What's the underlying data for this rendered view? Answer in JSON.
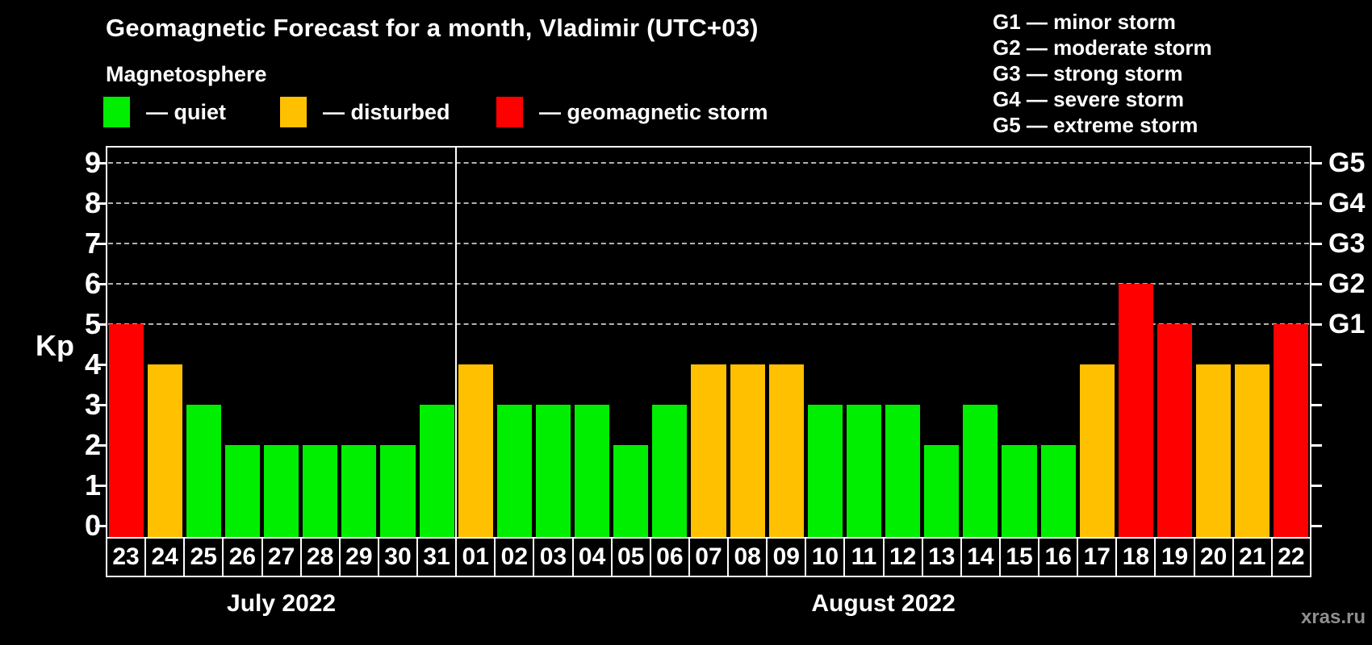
{
  "title": "Geomagnetic Forecast for a month, Vladimir (UTC+03)",
  "subtitle": "Magnetosphere",
  "legend": {
    "items": [
      {
        "key": "quiet",
        "label": "— quiet",
        "color": "#00ee00"
      },
      {
        "key": "disturbed",
        "label": "— disturbed",
        "color": "#ffc000"
      },
      {
        "key": "storm",
        "label": "— geomagnetic storm",
        "color": "#ff0000"
      }
    ]
  },
  "storm_scale": [
    "G1 — minor storm",
    "G2 — moderate storm",
    "G3 — strong storm",
    "G4 — severe storm",
    "G5 — extreme storm"
  ],
  "watermark": "xras.ru",
  "chart_data": {
    "type": "bar",
    "title": "Geomagnetic Forecast for a month, Vladimir (UTC+03)",
    "xlabel": "",
    "ylabel": "Kp",
    "ylim": [
      -0.3,
      9.4
    ],
    "y_ticks": [
      0,
      1,
      2,
      3,
      4,
      5,
      6,
      7,
      8,
      9
    ],
    "gridlines_at": [
      5,
      6,
      7,
      8,
      9
    ],
    "grid": "horizontal dashed at Kp 5-9 only",
    "legend_position": "top-left",
    "right_axis_labels": [
      {
        "kp": 5,
        "label": "G1"
      },
      {
        "kp": 6,
        "label": "G2"
      },
      {
        "kp": 7,
        "label": "G3"
      },
      {
        "kp": 8,
        "label": "G4"
      },
      {
        "kp": 9,
        "label": "G5"
      }
    ],
    "months": [
      {
        "label": "July 2022",
        "days": 9
      },
      {
        "label": "August 2022",
        "days": 22
      }
    ],
    "categories": [
      "23",
      "24",
      "25",
      "26",
      "27",
      "28",
      "29",
      "30",
      "31",
      "01",
      "02",
      "03",
      "04",
      "05",
      "06",
      "07",
      "08",
      "09",
      "10",
      "11",
      "12",
      "13",
      "14",
      "15",
      "16",
      "17",
      "18",
      "19",
      "20",
      "21",
      "22"
    ],
    "values": [
      5,
      4,
      3,
      2,
      2,
      2,
      2,
      2,
      3,
      4,
      3,
      3,
      3,
      2,
      3,
      4,
      4,
      4,
      3,
      3,
      3,
      2,
      3,
      2,
      2,
      4,
      6,
      5,
      4,
      4,
      5
    ],
    "thresholds": {
      "storm_min": 5,
      "disturbed_min": 4
    },
    "colors": {
      "quiet": "#00ee00",
      "disturbed": "#ffc000",
      "storm": "#ff0000"
    }
  }
}
